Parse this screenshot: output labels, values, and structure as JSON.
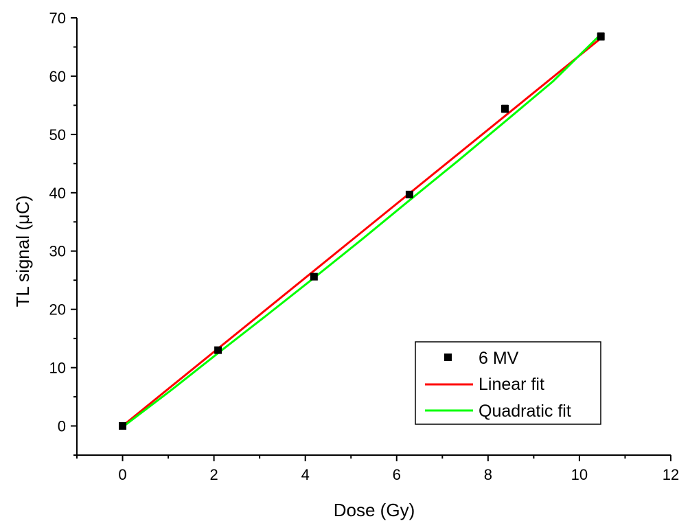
{
  "chart_data": {
    "type": "scatter",
    "xlabel": "Dose (Gy)",
    "ylabel": "TL signal (μC)",
    "xlim": [
      -1,
      12
    ],
    "ylim": [
      -5,
      70
    ],
    "x_ticks": [
      0,
      2,
      4,
      6,
      8,
      10,
      12
    ],
    "y_ticks": [
      0,
      10,
      20,
      30,
      40,
      50,
      60,
      70
    ],
    "grid": false,
    "legend_position": "bottom-right",
    "series": [
      {
        "name": "6 MV",
        "kind": "points",
        "marker": "square",
        "color": "#000000",
        "x": [
          0,
          2.09,
          4.19,
          6.28,
          8.37,
          10.47
        ],
        "y": [
          0.0,
          13.0,
          25.6,
          39.7,
          54.4,
          66.8
        ],
        "yerr": [
          0.3,
          0.4,
          0.5,
          0.5,
          0.6,
          0.6
        ]
      },
      {
        "name": "Linear fit",
        "kind": "line",
        "color": "#ff0000",
        "x": [
          0,
          10.47
        ],
        "y": [
          0.0,
          66.5
        ]
      },
      {
        "name": "Quadratic fit",
        "kind": "line",
        "color": "#00ff00",
        "x": [
          0,
          1.05,
          2.09,
          3.14,
          4.19,
          5.24,
          6.28,
          7.33,
          8.37,
          9.42,
          10.47
        ],
        "y": [
          -0.2,
          6.05,
          12.5,
          18.9,
          25.4,
          32.0,
          38.7,
          45.4,
          52.2,
          59.1,
          67.2
        ]
      }
    ]
  }
}
